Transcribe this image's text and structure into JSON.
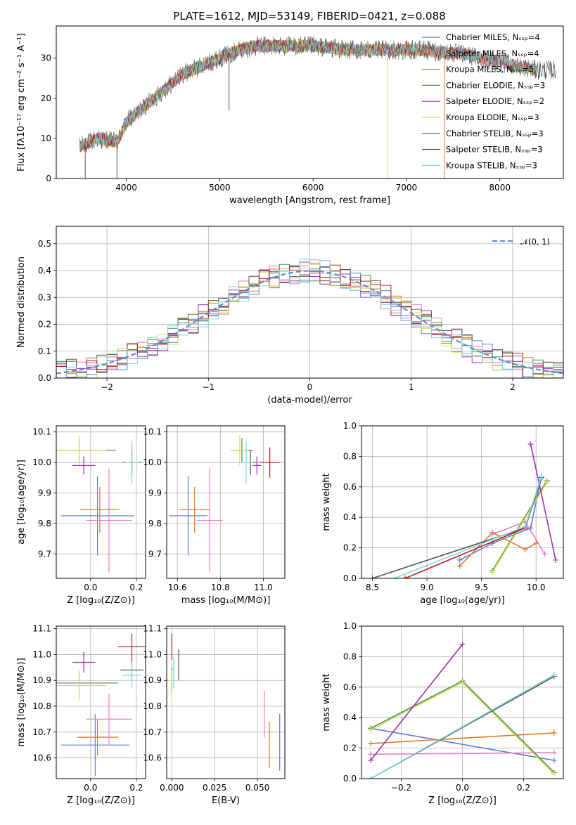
{
  "figure_title": "PLATE=1612, MJD=53149, FIBERID=0421, z=0.088",
  "colors": {
    "chabrier_miles": "#5b7fd6",
    "salpeter_miles": "#e07a2b",
    "kroupa_miles": "#c08a2a",
    "chabrier_elodie": "#4a8f4a",
    "salpeter_elodie": "#9b30b0",
    "kroupa_elodie": "#d6e25a",
    "chabrier_stelib": "#555555",
    "salpeter_stelib": "#b81e1e",
    "kroupa_stelib": "#7fd8e0",
    "normal": "#5b8fd8",
    "pink": "#e67fc0"
  },
  "chart_data": [
    {
      "type": "line",
      "panel": "spectrum",
      "xlabel": "wavelength [Angstrom, rest frame]",
      "ylabel": "Flux [fλ10⁻¹⁷ erg cm⁻² s⁻¹ A⁻¹]",
      "xlim": [
        3250,
        8680
      ],
      "ylim": [
        0,
        38
      ],
      "xticks": [
        "4000",
        "5000",
        "6000",
        "7000",
        "8000"
      ],
      "yticks": [
        "0",
        "10",
        "20",
        "30"
      ],
      "legend": [
        "Chabrier MILES, Nₛₛₚ=4",
        "Salpeter MILES, Nₛₛₚ=4",
        "Kroupa MILES, Nₛₛₚ=5",
        "Chabrier ELODIE, Nₛₛₚ=3",
        "Salpeter ELODIE, Nₛₛₚ=2",
        "Kroupa ELODIE, Nₛₛₚ=3",
        "Chabrier STELIB, Nₛₛₚ=3",
        "Salpeter STELIB, Nₛₛₚ=3",
        "Kroupa STELIB, Nₛₛₚ=3"
      ],
      "legend_position": "right",
      "continuum": [
        [
          3500,
          8
        ],
        [
          3700,
          10
        ],
        [
          3900,
          9
        ],
        [
          4000,
          14
        ],
        [
          4200,
          18
        ],
        [
          4400,
          22
        ],
        [
          4600,
          26
        ],
        [
          4800,
          28
        ],
        [
          5000,
          30
        ],
        [
          5200,
          32
        ],
        [
          5400,
          33
        ],
        [
          5600,
          33
        ],
        [
          5800,
          33
        ],
        [
          6000,
          33
        ],
        [
          6200,
          32.5
        ],
        [
          6400,
          32
        ],
        [
          6600,
          32
        ],
        [
          6800,
          32
        ],
        [
          7000,
          32
        ],
        [
          7200,
          32
        ],
        [
          7400,
          31.5
        ],
        [
          7600,
          31
        ],
        [
          7800,
          30
        ],
        [
          8000,
          29
        ],
        [
          8200,
          28
        ],
        [
          8400,
          27
        ]
      ],
      "spikes": [
        {
          "x": 3900,
          "y": 0
        },
        {
          "x": 5100,
          "y": 17
        },
        {
          "x": 6800,
          "y": 0
        },
        {
          "x": 7410,
          "y": 0
        },
        {
          "x": 3560,
          "y": 0
        }
      ]
    },
    {
      "type": "bar",
      "panel": "residual-histogram",
      "xlabel": "(data-model)/error",
      "ylabel": "Normed distribution",
      "xlim": [
        -2.5,
        2.5
      ],
      "ylim": [
        0,
        0.565
      ],
      "xticks": [
        "−2",
        "−1",
        "0",
        "1",
        "2"
      ],
      "yticks": [
        "0.0",
        "0.1",
        "0.2",
        "0.3",
        "0.4",
        "0.5"
      ],
      "legend": [
        "𝒩(0, 1)"
      ],
      "legend_position": "top-right",
      "bin_width": 0.1
    },
    {
      "type": "scatter",
      "panel": "age-vs-Z",
      "xlabel": "Z [log₁₀(Z/Z⊙)]",
      "ylabel": "age  [log₁₀(age/yr)]",
      "xlim": [
        -0.15,
        0.24
      ],
      "ylim": [
        9.62,
        10.12
      ],
      "xticks": [
        "0.0",
        "0.2"
      ],
      "yticks": [
        "9.7",
        "9.8",
        "9.9",
        "10.0",
        "10.1"
      ],
      "points": [
        {
          "c": "chabrier_miles",
          "x": 0.03,
          "y": 9.825,
          "xe": 0.16,
          "ye": 0.13
        },
        {
          "c": "salpeter_miles",
          "x": 0.04,
          "y": 9.845,
          "xe": 0.085,
          "ye": 0.075
        },
        {
          "c": "pink",
          "x": 0.08,
          "y": 9.81,
          "xe": 0.1,
          "ye": 0.17
        },
        {
          "c": "chabrier_elodie",
          "x": -0.05,
          "y": 10.04,
          "xe": 0.16,
          "ye": 0.04
        },
        {
          "c": "kroupa_elodie",
          "x": -0.05,
          "y": 10.04,
          "xe": 0.12,
          "ye": 0.05
        },
        {
          "c": "salpeter_elodie",
          "x": -0.03,
          "y": 9.99,
          "xe": 0.05,
          "ye": 0.03
        },
        {
          "c": "chabrier_stelib",
          "x": 0.18,
          "y": 10.0,
          "xe": 0.04,
          "ye": 0.04
        },
        {
          "c": "salpeter_stelib",
          "x": 0.18,
          "y": 10.0,
          "xe": 0.01,
          "ye": 0.04
        },
        {
          "c": "kroupa_stelib",
          "x": 0.18,
          "y": 10.0,
          "xe": 0.03,
          "ye": 0.07
        }
      ]
    },
    {
      "type": "scatter",
      "panel": "age-vs-mass",
      "xlabel": "mass [log₁₀(M/M⊙)]",
      "ylabel": "",
      "xlim": [
        10.55,
        11.1
      ],
      "ylim": [
        9.62,
        10.12
      ],
      "xticks": [
        "10.6",
        "10.8",
        "11.0"
      ],
      "yticks": [
        "9.7",
        "9.8",
        "9.9",
        "10.0",
        "10.1"
      ],
      "points": [
        {
          "c": "chabrier_miles",
          "x": 10.65,
          "y": 9.825,
          "xe": 0.09,
          "ye": 0.13
        },
        {
          "c": "salpeter_miles",
          "x": 10.68,
          "y": 9.845,
          "xe": 0.07,
          "ye": 0.075
        },
        {
          "c": "pink",
          "x": 10.75,
          "y": 9.81,
          "xe": 0.06,
          "ye": 0.17
        },
        {
          "c": "chabrier_elodie",
          "x": 10.9,
          "y": 10.04,
          "xe": 0.05,
          "ye": 0.04
        },
        {
          "c": "kroupa_elodie",
          "x": 10.89,
          "y": 10.04,
          "xe": 0.04,
          "ye": 0.05
        },
        {
          "c": "salpeter_elodie",
          "x": 10.97,
          "y": 9.99,
          "xe": 0.02,
          "ye": 0.03
        },
        {
          "c": "chabrier_stelib",
          "x": 10.94,
          "y": 10.0,
          "xe": 0.03,
          "ye": 0.04
        },
        {
          "c": "salpeter_stelib",
          "x": 11.03,
          "y": 10.0,
          "xe": 0.05,
          "ye": 0.05
        },
        {
          "c": "kroupa_stelib",
          "x": 10.92,
          "y": 10.0,
          "xe": 0.03,
          "ye": 0.07
        }
      ]
    },
    {
      "type": "line",
      "panel": "mass-weight-vs-age",
      "xlabel": "age  [log₁₀(age/yr)]",
      "ylabel": "mass weight",
      "xlim": [
        8.4,
        10.25
      ],
      "ylim": [
        0,
        1.0
      ],
      "xticks": [
        "8.5",
        "9.0",
        "9.5",
        "10.0"
      ],
      "yticks": [
        "0.0",
        "0.2",
        "0.4",
        "0.6",
        "0.8",
        "1.0"
      ],
      "series": [
        {
          "c": "chabrier_miles",
          "x": [
            9.3,
            9.6,
            9.95,
            10.05
          ],
          "y": [
            0.12,
            0.23,
            0.33,
            0.67
          ]
        },
        {
          "c": "salpeter_miles",
          "x": [
            9.3,
            9.6,
            9.9,
            10.0
          ],
          "y": [
            0.08,
            0.3,
            0.19,
            0.23
          ]
        },
        {
          "c": "pink",
          "x": [
            9.6,
            9.9,
            10.08
          ],
          "y": [
            0.29,
            0.37,
            0.16
          ]
        },
        {
          "c": "chabrier_elodie",
          "x": [
            9.6,
            10.1
          ],
          "y": [
            0.05,
            0.64
          ]
        },
        {
          "c": "kroupa_elodie",
          "x": [
            9.6,
            10.1
          ],
          "y": [
            0.04,
            0.63
          ]
        },
        {
          "c": "salpeter_elodie",
          "x": [
            9.95,
            10.18
          ],
          "y": [
            0.88,
            0.12
          ]
        },
        {
          "c": "chabrier_stelib",
          "x": [
            8.5,
            9.9,
            10.05
          ],
          "y": [
            0.0,
            0.33,
            0.66
          ]
        },
        {
          "c": "salpeter_stelib",
          "x": [
            8.8,
            9.9
          ],
          "y": [
            0.0,
            0.33
          ]
        },
        {
          "c": "kroupa_stelib",
          "x": [
            8.7,
            9.9,
            10.05
          ],
          "y": [
            0.0,
            0.34,
            0.67
          ]
        }
      ]
    },
    {
      "type": "scatter",
      "panel": "mass-vs-Z",
      "xlabel": "Z [log₁₀(Z/Z⊙)]",
      "ylabel": "mass [log₁₀(M/M⊙)]",
      "xlim": [
        -0.15,
        0.24
      ],
      "ylim": [
        10.52,
        11.11
      ],
      "xticks": [
        "0.0",
        "0.2"
      ],
      "yticks": [
        "10.6",
        "10.7",
        "10.8",
        "10.9",
        "11.0",
        "11.1"
      ],
      "points": [
        {
          "c": "chabrier_miles",
          "x": 0.02,
          "y": 10.65,
          "xe": 0.15,
          "ye": 0.12
        },
        {
          "c": "salpeter_miles",
          "x": 0.03,
          "y": 10.68,
          "xe": 0.09,
          "ye": 0.07
        },
        {
          "c": "pink",
          "x": 0.08,
          "y": 10.75,
          "xe": 0.1,
          "ye": 0.1
        },
        {
          "c": "chabrier_elodie",
          "x": -0.05,
          "y": 10.89,
          "xe": 0.17,
          "ye": 0.04
        },
        {
          "c": "kroupa_elodie",
          "x": -0.05,
          "y": 10.88,
          "xe": 0.12,
          "ye": 0.06
        },
        {
          "c": "salpeter_elodie",
          "x": -0.03,
          "y": 10.97,
          "xe": 0.05,
          "ye": 0.04
        },
        {
          "c": "chabrier_stelib",
          "x": 0.18,
          "y": 10.94,
          "xe": 0.05,
          "ye": 0.04
        },
        {
          "c": "salpeter_stelib",
          "x": 0.18,
          "y": 11.03,
          "xe": 0.06,
          "ye": 0.05
        },
        {
          "c": "kroupa_stelib",
          "x": 0.18,
          "y": 10.92,
          "xe": 0.04,
          "ye": 0.05
        }
      ]
    },
    {
      "type": "scatter",
      "panel": "mass-vs-ebv",
      "xlabel": "E(B-V)",
      "ylabel": "",
      "xlim": [
        -0.003,
        0.066
      ],
      "ylim": [
        10.52,
        11.11
      ],
      "xticks": [
        "0.000",
        "0.025",
        "0.050"
      ],
      "yticks": [
        "10.6",
        "10.7",
        "10.8",
        "10.9",
        "11.0",
        "11.1"
      ],
      "points": [
        {
          "c": "chabrier_miles",
          "x": 0.063,
          "y": 10.66,
          "xe": 0.0,
          "ye": 0.11
        },
        {
          "c": "salpeter_miles",
          "x": 0.057,
          "y": 10.65,
          "xe": 0.0,
          "ye": 0.09
        },
        {
          "c": "pink",
          "x": 0.054,
          "y": 10.77,
          "xe": 0.0,
          "ye": 0.09
        },
        {
          "c": "chabrier_elodie",
          "x": 0.0,
          "y": 10.9,
          "xe": 0.0,
          "ye": 0.05
        },
        {
          "c": "kroupa_elodie",
          "x": 0.0,
          "y": 10.88,
          "xe": 0.0,
          "ye": 0.06
        },
        {
          "c": "salpeter_stelib",
          "x": 0.0,
          "y": 11.03,
          "xe": 0.0,
          "ye": 0.05
        },
        {
          "c": "chabrier_stelib",
          "x": 0.004,
          "y": 10.96,
          "xe": 0.0,
          "ye": 0.06
        },
        {
          "c": "kroupa_stelib",
          "x": 0.001,
          "y": 10.93,
          "xe": 0.0,
          "ye": 0.06
        }
      ]
    },
    {
      "type": "line",
      "panel": "mass-weight-vs-Z",
      "xlabel": "Z [log₁₀(Z/Z⊙)]",
      "ylabel": "mass weight",
      "xlim": [
        -0.33,
        0.33
      ],
      "ylim": [
        0,
        1.0
      ],
      "xticks": [
        "−0.2",
        "0.0",
        "0.2"
      ],
      "yticks": [
        "0.0",
        "0.2",
        "0.4",
        "0.6",
        "0.8",
        "1.0"
      ],
      "series": [
        {
          "c": "chabrier_miles",
          "x": [
            -0.3,
            0.3
          ],
          "y": [
            0.33,
            0.12
          ]
        },
        {
          "c": "salpeter_miles",
          "x": [
            -0.3,
            0.3
          ],
          "y": [
            0.23,
            0.3
          ]
        },
        {
          "c": "pink",
          "x": [
            -0.3,
            0.3
          ],
          "y": [
            0.16,
            0.17
          ]
        },
        {
          "c": "chabrier_elodie",
          "x": [
            -0.3,
            0.0,
            0.3
          ],
          "y": [
            0.33,
            0.64,
            0.04
          ]
        },
        {
          "c": "kroupa_elodie",
          "x": [
            -0.3,
            0.0,
            0.3
          ],
          "y": [
            0.32,
            0.63,
            0.03
          ]
        },
        {
          "c": "salpeter_elodie",
          "x": [
            -0.3,
            0.0
          ],
          "y": [
            0.12,
            0.88
          ]
        },
        {
          "c": "chabrier_stelib",
          "x": [
            -0.3,
            0.3
          ],
          "y": [
            0.0,
            0.67
          ]
        },
        {
          "c": "kroupa_stelib",
          "x": [
            -0.3,
            0.3
          ],
          "y": [
            0.0,
            0.68
          ]
        }
      ]
    }
  ]
}
